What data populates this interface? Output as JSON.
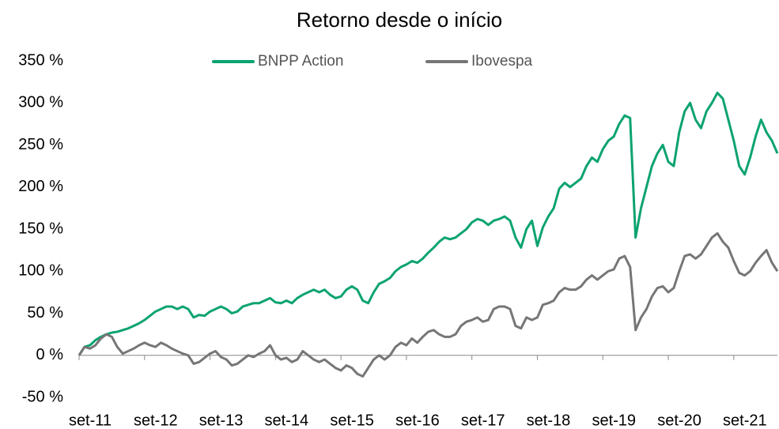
{
  "chart_data": {
    "type": "line",
    "title": "Retorno desde o início",
    "legend": "top",
    "grid": false,
    "x": [
      "2011-09",
      "2011-10",
      "2011-11",
      "2011-12",
      "2012-01",
      "2012-02",
      "2012-03",
      "2012-04",
      "2012-05",
      "2012-06",
      "2012-07",
      "2012-08",
      "2012-09",
      "2012-10",
      "2012-11",
      "2012-12",
      "2013-01",
      "2013-02",
      "2013-03",
      "2013-04",
      "2013-05",
      "2013-06",
      "2013-07",
      "2013-08",
      "2013-09",
      "2013-10",
      "2013-11",
      "2013-12",
      "2014-01",
      "2014-02",
      "2014-03",
      "2014-04",
      "2014-05",
      "2014-06",
      "2014-07",
      "2014-08",
      "2014-09",
      "2014-10",
      "2014-11",
      "2014-12",
      "2015-01",
      "2015-02",
      "2015-03",
      "2015-04",
      "2015-05",
      "2015-06",
      "2015-07",
      "2015-08",
      "2015-09",
      "2015-10",
      "2015-11",
      "2015-12",
      "2016-01",
      "2016-02",
      "2016-03",
      "2016-04",
      "2016-05",
      "2016-06",
      "2016-07",
      "2016-08",
      "2016-09",
      "2016-10",
      "2016-11",
      "2016-12",
      "2017-01",
      "2017-02",
      "2017-03",
      "2017-04",
      "2017-05",
      "2017-06",
      "2017-07",
      "2017-08",
      "2017-09",
      "2017-10",
      "2017-11",
      "2017-12",
      "2018-01",
      "2018-02",
      "2018-03",
      "2018-04",
      "2018-05",
      "2018-06",
      "2018-07",
      "2018-08",
      "2018-09",
      "2018-10",
      "2018-11",
      "2018-12",
      "2019-01",
      "2019-02",
      "2019-03",
      "2019-04",
      "2019-05",
      "2019-06",
      "2019-07",
      "2019-08",
      "2019-09",
      "2019-10",
      "2019-11",
      "2019-12",
      "2020-01",
      "2020-02",
      "2020-03",
      "2020-04",
      "2020-05",
      "2020-06",
      "2020-07",
      "2020-08",
      "2020-09",
      "2020-10",
      "2020-11",
      "2020-12",
      "2021-01",
      "2021-02",
      "2021-03",
      "2021-04",
      "2021-05",
      "2021-06",
      "2021-07",
      "2021-08",
      "2021-09",
      "2021-10",
      "2021-11",
      "2021-12",
      "2022-01",
      "2022-02",
      "2022-03",
      "2022-04",
      "2022-05"
    ],
    "series": [
      {
        "name": "BNPP Action",
        "color": "#0ca36f",
        "values": [
          0,
          10,
          12,
          18,
          22,
          25,
          27,
          28,
          30,
          32,
          35,
          38,
          42,
          47,
          52,
          55,
          58,
          58,
          55,
          58,
          55,
          45,
          48,
          47,
          52,
          55,
          58,
          55,
          50,
          52,
          58,
          60,
          62,
          62,
          65,
          68,
          63,
          62,
          65,
          62,
          68,
          72,
          75,
          78,
          75,
          78,
          72,
          68,
          70,
          78,
          82,
          78,
          65,
          62,
          75,
          85,
          88,
          92,
          100,
          105,
          108,
          112,
          110,
          115,
          122,
          128,
          135,
          140,
          138,
          140,
          145,
          150,
          158,
          162,
          160,
          155,
          160,
          162,
          165,
          160,
          140,
          128,
          150,
          160,
          130,
          152,
          165,
          175,
          198,
          205,
          200,
          205,
          210,
          225,
          235,
          230,
          245,
          255,
          260,
          275,
          285,
          282,
          140,
          175,
          200,
          225,
          240,
          250,
          230,
          225,
          265,
          290,
          300,
          280,
          270,
          290,
          300,
          312,
          305,
          280,
          255,
          225,
          215,
          235,
          260,
          280,
          265,
          255,
          240
        ]
      },
      {
        "name": "Ibovespa",
        "color": "#767676",
        "values": [
          0,
          10,
          8,
          12,
          20,
          25,
          22,
          10,
          2,
          5,
          8,
          12,
          15,
          12,
          10,
          15,
          12,
          8,
          5,
          2,
          0,
          -10,
          -8,
          -3,
          2,
          5,
          -2,
          -5,
          -12,
          -10,
          -5,
          0,
          -2,
          2,
          5,
          12,
          0,
          -5,
          -3,
          -8,
          -5,
          5,
          0,
          -5,
          -8,
          -5,
          -10,
          -15,
          -18,
          -12,
          -15,
          -22,
          -25,
          -15,
          -5,
          0,
          -5,
          0,
          10,
          15,
          12,
          20,
          15,
          22,
          28,
          30,
          25,
          22,
          22,
          25,
          35,
          40,
          42,
          45,
          40,
          42,
          55,
          58,
          58,
          55,
          35,
          32,
          45,
          42,
          45,
          60,
          62,
          65,
          75,
          80,
          78,
          78,
          82,
          90,
          95,
          90,
          95,
          100,
          102,
          115,
          118,
          105,
          30,
          45,
          55,
          70,
          80,
          82,
          75,
          80,
          100,
          118,
          120,
          115,
          120,
          130,
          140,
          145,
          135,
          128,
          112,
          98,
          95,
          100,
          110,
          118,
          125,
          110,
          100
        ]
      }
    ],
    "xlim": [
      "2011-09",
      "2022-05"
    ],
    "xticks": [
      {
        "value": "2011-09",
        "label": "set-11"
      },
      {
        "value": "2012-09",
        "label": "set-12"
      },
      {
        "value": "2013-09",
        "label": "set-13"
      },
      {
        "value": "2014-09",
        "label": "set-14"
      },
      {
        "value": "2015-09",
        "label": "set-15"
      },
      {
        "value": "2016-09",
        "label": "set-16"
      },
      {
        "value": "2017-09",
        "label": "set-17"
      },
      {
        "value": "2018-09",
        "label": "set-18"
      },
      {
        "value": "2019-09",
        "label": "set-19"
      },
      {
        "value": "2020-09",
        "label": "set-20"
      },
      {
        "value": "2021-09",
        "label": "set-21"
      }
    ],
    "ylim": [
      -50,
      350
    ],
    "yticks": [
      {
        "value": -50,
        "label": "-50 %"
      },
      {
        "value": 0,
        "label": "0 %"
      },
      {
        "value": 50,
        "label": "50 %"
      },
      {
        "value": 100,
        "label": "100 %"
      },
      {
        "value": 150,
        "label": "150 %"
      },
      {
        "value": 200,
        "label": "200 %"
      },
      {
        "value": 250,
        "label": "250 %"
      },
      {
        "value": 300,
        "label": "300 %"
      },
      {
        "value": 350,
        "label": "350 %"
      }
    ]
  }
}
